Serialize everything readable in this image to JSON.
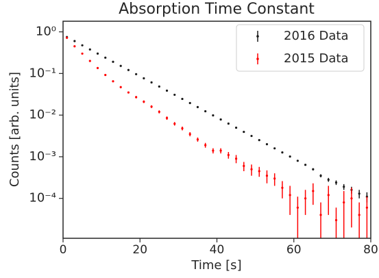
{
  "chart_data": {
    "type": "errorbar-scatter",
    "title": "Absorption Time Constant",
    "x_label": "Time [s]",
    "y_label": "Counts [arb. units]",
    "log_y": true,
    "legend": "upper right",
    "xlim": [
      0,
      80
    ],
    "xticks": [
      0,
      20,
      40,
      60,
      80
    ],
    "ylim": [
      1.1e-05,
      1.8
    ],
    "yticks": [
      {
        "value": 1,
        "label": "10⁰"
      },
      {
        "value": 0.1,
        "label": "10⁻¹"
      },
      {
        "value": 0.01,
        "label": "10⁻²"
      },
      {
        "value": 0.001,
        "label": "10⁻³"
      },
      {
        "value": 0.0001,
        "label": "10⁻⁴"
      }
    ],
    "x": [
      1,
      3,
      5,
      7,
      9,
      11,
      13,
      15,
      17,
      19,
      21,
      23,
      25,
      27,
      29,
      31,
      33,
      35,
      37,
      39,
      41,
      43,
      45,
      47,
      49,
      51,
      53,
      55,
      57,
      59,
      61,
      63,
      65,
      67,
      69,
      71,
      73,
      75,
      77,
      79
    ],
    "series": [
      {
        "name": "2016 Data",
        "color": "#1a1a1a",
        "values": [
          0.75,
          0.6,
          0.475,
          0.378,
          0.301,
          0.24,
          0.191,
          0.152,
          0.121,
          0.0964,
          0.0767,
          0.0611,
          0.0486,
          0.0387,
          0.0308,
          0.0245,
          0.0195,
          0.0156,
          0.0124,
          0.00986,
          0.00785,
          0.00625,
          0.00498,
          0.00396,
          0.00316,
          0.00251,
          0.002,
          0.00159,
          0.00127,
          0.00101,
          0.0008,
          0.00064,
          0.0005,
          0.00035,
          0.00028,
          0.00024,
          0.00019,
          0.00016,
          0.00013,
          0.00011
        ],
        "errors": [
          0.005,
          0.004,
          0.003,
          0.003,
          0.002,
          0.002,
          0.0015,
          0.0012,
          0.001,
          0.0008,
          0.0007,
          0.0006,
          0.0005,
          0.0004,
          0.0003,
          0.0003,
          0.0003,
          0.0002,
          0.0002,
          0.0002,
          0.00015,
          0.00012,
          0.0001,
          8e-05,
          7e-05,
          6e-05,
          5e-05,
          4e-05,
          4e-05,
          3e-05,
          3e-05,
          3e-05,
          3e-05,
          3e-05,
          3e-05,
          3e-05,
          3e-05,
          3e-05,
          3e-05,
          3e-05
        ]
      },
      {
        "name": "2015 Data",
        "color": "#ff0000",
        "values": [
          0.72,
          0.45,
          0.3,
          0.2,
          0.135,
          0.092,
          0.065,
          0.047,
          0.035,
          0.027,
          0.021,
          0.016,
          0.012,
          0.0085,
          0.0062,
          0.0048,
          0.0035,
          0.0026,
          0.0019,
          0.0014,
          0.0014,
          0.0011,
          0.0009,
          0.0006,
          0.0005,
          0.00045,
          0.00035,
          0.0003,
          0.00018,
          0.00012,
          6e-05,
          0.0001,
          0.00015,
          4e-05,
          0.00012,
          3e-05,
          8e-05,
          0.0001,
          4e-05,
          6e-05
        ],
        "errors": [
          0.02,
          0.015,
          0.01,
          0.007,
          0.005,
          0.004,
          0.003,
          0.0025,
          0.002,
          0.0018,
          0.0015,
          0.0012,
          0.001,
          0.0008,
          0.0006,
          0.0005,
          0.0004,
          0.0003,
          0.00025,
          0.0002,
          0.0002,
          0.0002,
          0.0002,
          0.00015,
          0.00015,
          0.00012,
          0.00012,
          0.0001,
          8e-05,
          8e-05,
          5e-05,
          6e-05,
          8e-05,
          4e-05,
          8e-05,
          3e-05,
          7e-05,
          8e-05,
          4e-05,
          5e-05
        ]
      }
    ]
  }
}
